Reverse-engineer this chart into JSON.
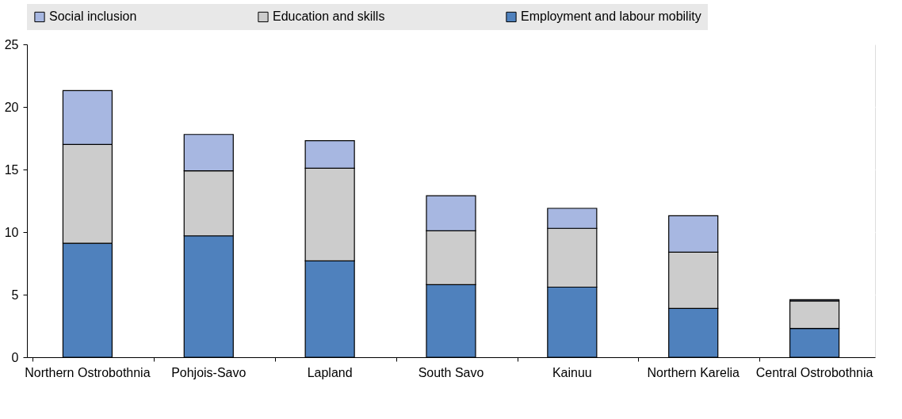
{
  "chart_data": {
    "type": "bar",
    "stacked": true,
    "categories": [
      "Northern Ostrobothnia",
      "Pohjois-Savo",
      "Lapland",
      "South Savo",
      "Kainuu",
      "Northern Karelia",
      "Central Ostrobothnia"
    ],
    "series": [
      {
        "name": "Employment and labour mobility",
        "color": "#4f81bd",
        "values": [
          9.1,
          9.7,
          7.7,
          5.8,
          5.6,
          3.9,
          2.3
        ]
      },
      {
        "name": "Education and skills",
        "color": "#cccccc",
        "values": [
          7.9,
          5.2,
          7.4,
          4.3,
          4.7,
          4.5,
          2.2
        ]
      },
      {
        "name": "Social inclusion",
        "color": "#a7b7e1",
        "values": [
          4.3,
          2.9,
          2.2,
          2.8,
          1.6,
          2.9,
          0.1
        ]
      }
    ],
    "ylim": [
      0,
      25
    ],
    "yticks": [
      0,
      5,
      10,
      15,
      20,
      25
    ],
    "grid": true,
    "legend": "top"
  }
}
